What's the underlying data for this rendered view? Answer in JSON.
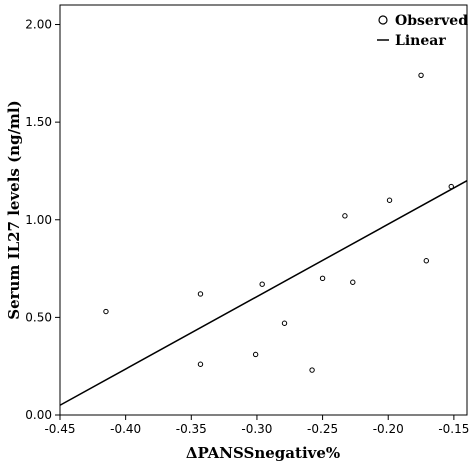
{
  "chart_data": {
    "type": "scatter",
    "xlabel": "ΔPANSSnegative%",
    "ylabel": "Serum IL27 levels (ng/ml)",
    "xlim": [
      -0.45,
      -0.14
    ],
    "ylim": [
      0.0,
      2.1
    ],
    "x_ticks": [
      -0.45,
      -0.4,
      -0.35,
      -0.3,
      -0.25,
      -0.2,
      -0.15
    ],
    "x_tick_labels": [
      "-0.45",
      "-0.40",
      "-0.35",
      "-0.30",
      "-0.25",
      "-0.20",
      "-0.15"
    ],
    "y_ticks": [
      0.0,
      0.5,
      1.0,
      1.5,
      2.0
    ],
    "y_tick_labels": [
      "0.00",
      "0.50",
      "1.00",
      "1.50",
      "2.00"
    ],
    "grid": false,
    "legend_position": "top-right",
    "series": [
      {
        "name": "Observed",
        "kind": "scatter",
        "points": [
          {
            "x": -0.415,
            "y": 0.53
          },
          {
            "x": -0.343,
            "y": 0.62
          },
          {
            "x": -0.343,
            "y": 0.26
          },
          {
            "x": -0.301,
            "y": 0.31
          },
          {
            "x": -0.296,
            "y": 0.67
          },
          {
            "x": -0.279,
            "y": 0.47
          },
          {
            "x": -0.258,
            "y": 0.23
          },
          {
            "x": -0.25,
            "y": 0.7
          },
          {
            "x": -0.233,
            "y": 1.02
          },
          {
            "x": -0.227,
            "y": 0.68
          },
          {
            "x": -0.199,
            "y": 1.1
          },
          {
            "x": -0.175,
            "y": 1.74
          },
          {
            "x": -0.171,
            "y": 0.79
          },
          {
            "x": -0.152,
            "y": 1.17
          }
        ]
      },
      {
        "name": "Linear",
        "kind": "line",
        "points": [
          {
            "x": -0.45,
            "y": 0.05
          },
          {
            "x": -0.14,
            "y": 1.2
          }
        ]
      }
    ]
  }
}
